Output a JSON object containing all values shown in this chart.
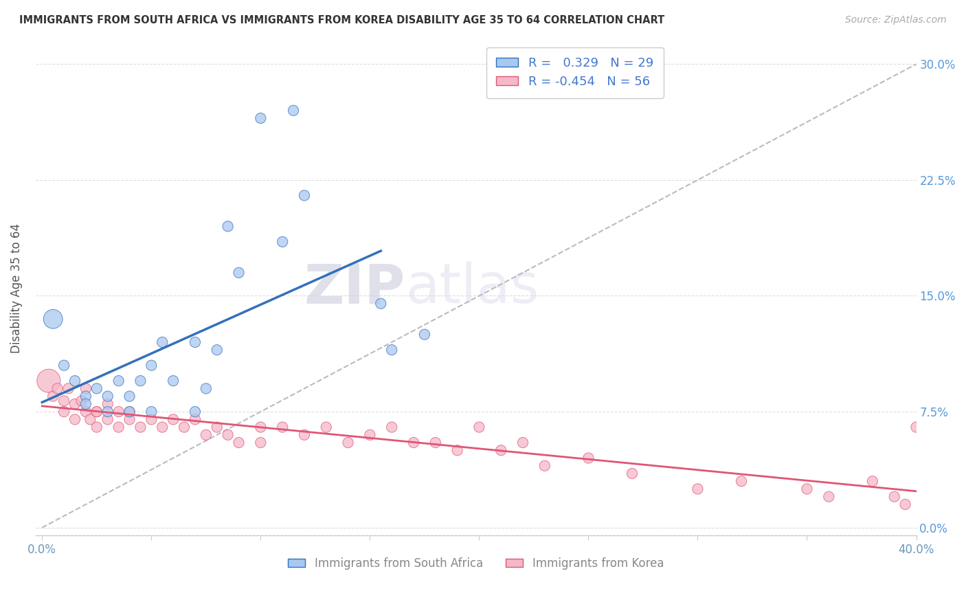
{
  "title": "IMMIGRANTS FROM SOUTH AFRICA VS IMMIGRANTS FROM KOREA DISABILITY AGE 35 TO 64 CORRELATION CHART",
  "source": "Source: ZipAtlas.com",
  "ylabel": "Disability Age 35 to 64",
  "ytick_values": [
    0.0,
    0.075,
    0.15,
    0.225,
    0.3
  ],
  "xrange": [
    -0.003,
    0.4
  ],
  "yrange": [
    -0.005,
    0.315
  ],
  "legend_label1": "Immigrants from South Africa",
  "legend_label2": "Immigrants from Korea",
  "color_blue": "#A8C8F0",
  "color_pink": "#F5B8C8",
  "color_blue_line": "#3370BB",
  "color_pink_line": "#E05575",
  "color_diag": "#BBBBBB",
  "south_africa_x": [
    0.005,
    0.01,
    0.015,
    0.02,
    0.02,
    0.025,
    0.03,
    0.03,
    0.035,
    0.04,
    0.04,
    0.045,
    0.05,
    0.05,
    0.055,
    0.06,
    0.07,
    0.07,
    0.075,
    0.08,
    0.085,
    0.09,
    0.1,
    0.11,
    0.115,
    0.12,
    0.155,
    0.16,
    0.175
  ],
  "south_africa_y": [
    0.135,
    0.105,
    0.095,
    0.085,
    0.08,
    0.09,
    0.085,
    0.075,
    0.095,
    0.085,
    0.075,
    0.095,
    0.105,
    0.075,
    0.12,
    0.095,
    0.12,
    0.075,
    0.09,
    0.115,
    0.195,
    0.165,
    0.265,
    0.185,
    0.27,
    0.215,
    0.145,
    0.115,
    0.125
  ],
  "south_africa_sizes": [
    400,
    120,
    120,
    120,
    120,
    120,
    120,
    120,
    120,
    120,
    120,
    120,
    120,
    120,
    120,
    120,
    120,
    120,
    120,
    120,
    120,
    120,
    120,
    120,
    120,
    120,
    120,
    120,
    120
  ],
  "korea_x": [
    0.003,
    0.005,
    0.007,
    0.01,
    0.01,
    0.012,
    0.015,
    0.015,
    0.018,
    0.02,
    0.02,
    0.022,
    0.025,
    0.025,
    0.025,
    0.03,
    0.03,
    0.035,
    0.035,
    0.04,
    0.04,
    0.045,
    0.05,
    0.055,
    0.06,
    0.065,
    0.07,
    0.075,
    0.08,
    0.085,
    0.09,
    0.1,
    0.1,
    0.11,
    0.12,
    0.13,
    0.14,
    0.15,
    0.16,
    0.17,
    0.18,
    0.19,
    0.2,
    0.21,
    0.22,
    0.23,
    0.25,
    0.27,
    0.3,
    0.32,
    0.35,
    0.36,
    0.38,
    0.39,
    0.395,
    0.4
  ],
  "korea_y": [
    0.095,
    0.085,
    0.09,
    0.082,
    0.075,
    0.09,
    0.08,
    0.07,
    0.082,
    0.09,
    0.075,
    0.07,
    0.075,
    0.065,
    0.075,
    0.08,
    0.07,
    0.075,
    0.065,
    0.07,
    0.075,
    0.065,
    0.07,
    0.065,
    0.07,
    0.065,
    0.07,
    0.06,
    0.065,
    0.06,
    0.055,
    0.065,
    0.055,
    0.065,
    0.06,
    0.065,
    0.055,
    0.06,
    0.065,
    0.055,
    0.055,
    0.05,
    0.065,
    0.05,
    0.055,
    0.04,
    0.045,
    0.035,
    0.025,
    0.03,
    0.025,
    0.02,
    0.03,
    0.02,
    0.015,
    0.065
  ],
  "korea_sizes": [
    600,
    120,
    120,
    120,
    120,
    120,
    120,
    120,
    120,
    120,
    120,
    120,
    120,
    120,
    120,
    120,
    120,
    120,
    120,
    120,
    120,
    120,
    120,
    120,
    120,
    120,
    120,
    120,
    120,
    120,
    120,
    120,
    120,
    120,
    120,
    120,
    120,
    120,
    120,
    120,
    120,
    120,
    120,
    120,
    120,
    120,
    120,
    120,
    120,
    120,
    120,
    120,
    120,
    120,
    120,
    120
  ]
}
